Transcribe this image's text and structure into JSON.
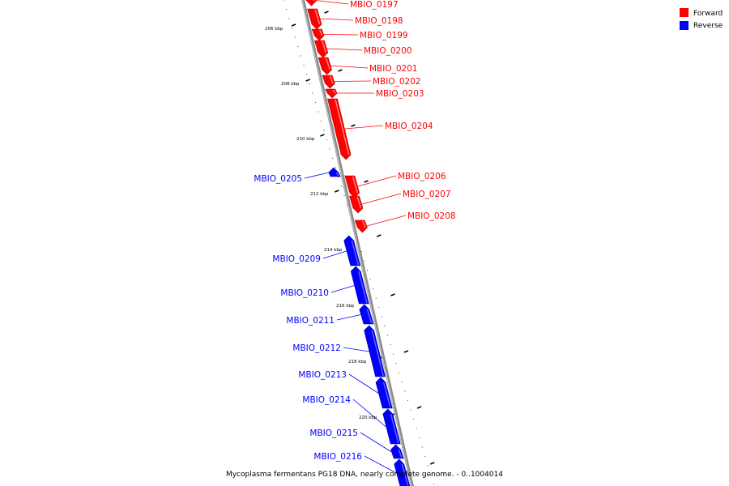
{
  "legend": {
    "forward_label": "Forward",
    "reverse_label": "Reverse",
    "forward_color": "#ff0000",
    "reverse_color": "#0000ff"
  },
  "caption": "Mycoplasma fermentans PG18 DNA, nearly complete genome. - 0..1004014",
  "ruler": {
    "unit": "kbp",
    "labels": [
      "206 kbp",
      "208 kbp",
      "210 kbp",
      "212 kbp",
      "214 kbp",
      "216 kbp",
      "218 kbp",
      "220 kbp"
    ]
  },
  "genes": [
    {
      "name": "MBIO_0197",
      "strand": "forward"
    },
    {
      "name": "MBIO_0198",
      "strand": "forward"
    },
    {
      "name": "MBIO_0199",
      "strand": "forward"
    },
    {
      "name": "MBIO_0200",
      "strand": "forward"
    },
    {
      "name": "MBIO_0201",
      "strand": "forward"
    },
    {
      "name": "MBIO_0202",
      "strand": "forward"
    },
    {
      "name": "MBIO_0203",
      "strand": "forward"
    },
    {
      "name": "MBIO_0204",
      "strand": "forward"
    },
    {
      "name": "MBIO_0205",
      "strand": "reverse"
    },
    {
      "name": "MBIO_0206",
      "strand": "forward"
    },
    {
      "name": "MBIO_0207",
      "strand": "forward"
    },
    {
      "name": "MBIO_0208",
      "strand": "forward"
    },
    {
      "name": "MBIO_0209",
      "strand": "reverse"
    },
    {
      "name": "MBIO_0210",
      "strand": "reverse"
    },
    {
      "name": "MBIO_0211",
      "strand": "reverse"
    },
    {
      "name": "MBIO_0212",
      "strand": "reverse"
    },
    {
      "name": "MBIO_0213",
      "strand": "reverse"
    },
    {
      "name": "MBIO_0214",
      "strand": "reverse"
    },
    {
      "name": "MBIO_0215",
      "strand": "reverse"
    },
    {
      "name": "MBIO_0216",
      "strand": "reverse"
    }
  ]
}
